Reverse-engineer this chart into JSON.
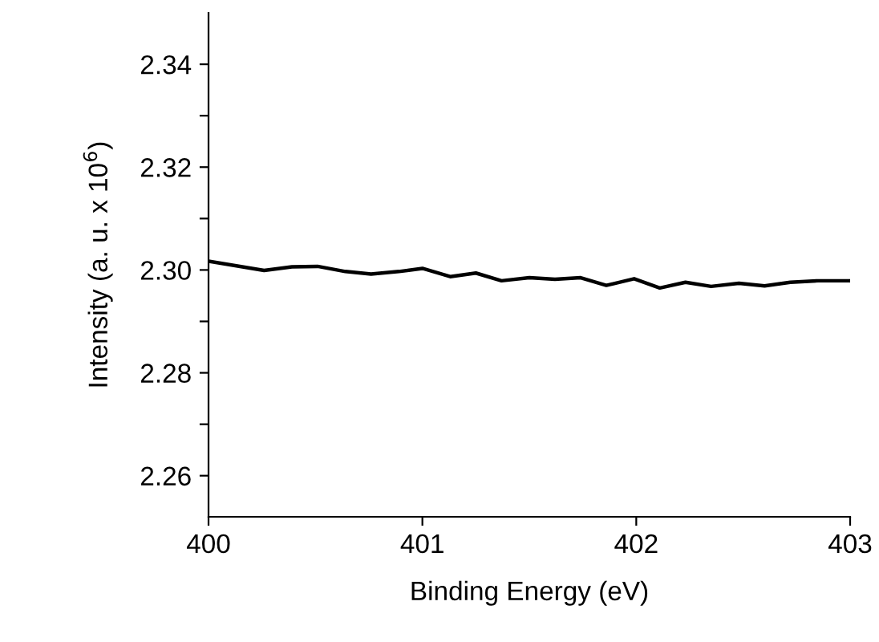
{
  "chart_data": {
    "type": "line",
    "xlabel": "Binding Energy (eV)",
    "ylabel": "Intensity (a. u. x 10$^{6}$)",
    "x": [
      400.0,
      400.26,
      400.39,
      400.51,
      400.64,
      400.76,
      400.89,
      401.0,
      401.13,
      401.25,
      401.37,
      401.5,
      401.62,
      401.74,
      401.86,
      401.99,
      402.11,
      402.23,
      402.35,
      402.48,
      402.6,
      402.72,
      402.85,
      403.0
    ],
    "series": [
      {
        "color": "#000000",
        "values": [
          2.3017,
          2.2999,
          2.3006,
          2.3007,
          2.2997,
          2.2992,
          2.2997,
          2.3003,
          2.2987,
          2.2994,
          2.2979,
          2.2985,
          2.2982,
          2.2985,
          2.297,
          2.2983,
          2.2965,
          2.2976,
          2.2968,
          2.2974,
          2.2969,
          2.2976,
          2.2979,
          2.2979
        ]
      }
    ],
    "xlim": [
      400,
      403
    ],
    "xticks": [
      400,
      401,
      402,
      403
    ],
    "ylim": [
      2.252,
      2.35
    ],
    "yticks": [
      {
        "value": 2.26,
        "label": "2.26"
      },
      {
        "value": 2.27,
        "label": null
      },
      {
        "value": 2.28,
        "label": "2.28"
      },
      {
        "value": 2.29,
        "label": null
      },
      {
        "value": 2.3,
        "label": "2.30"
      },
      {
        "value": 2.31,
        "label": null
      },
      {
        "value": 2.32,
        "label": "2.32"
      },
      {
        "value": 2.33,
        "label": null
      },
      {
        "value": 2.34,
        "label": "2.34"
      }
    ],
    "grid": false,
    "legend": false,
    "marker": "none",
    "line_style": "solid"
  }
}
